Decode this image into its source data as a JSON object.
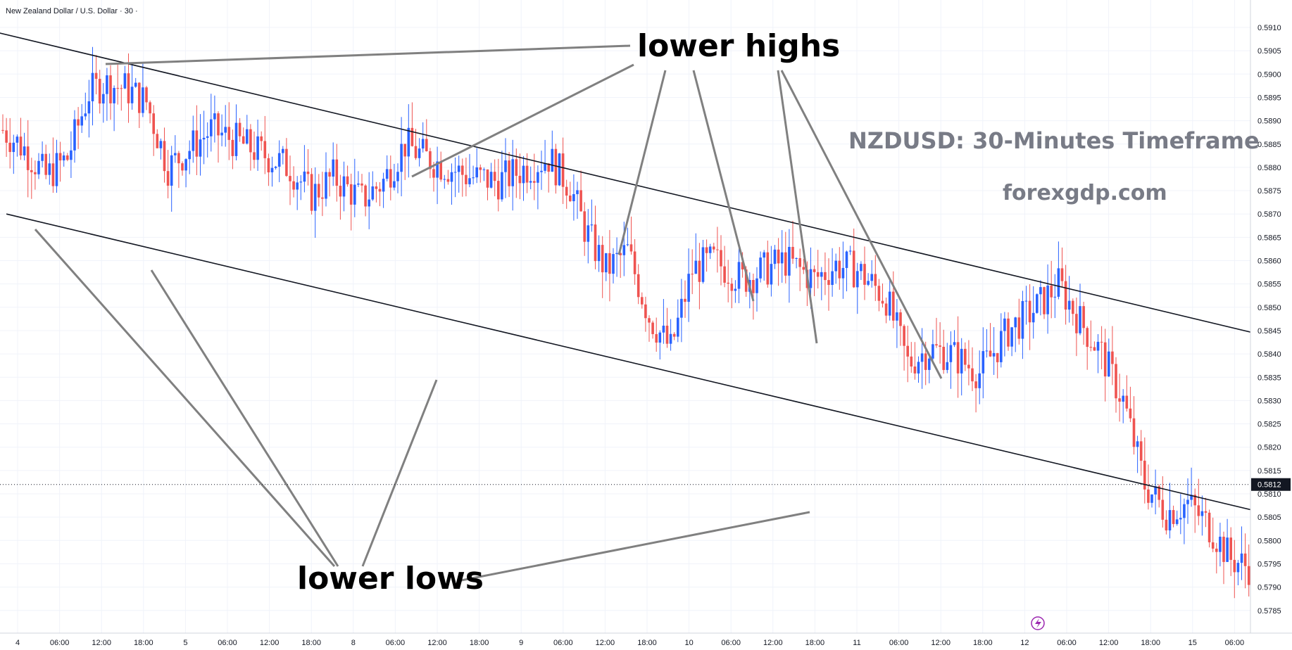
{
  "header": {
    "symbol": "New Zealand Dollar / U.S. Dollar · 30 ·"
  },
  "annotations": {
    "lower_highs": "lower highs",
    "lower_lows": "lower lows",
    "title": "NZDUSD: 30-Minutes Timeframe",
    "site": "forexgdp.com"
  },
  "price_axis": {
    "current_price": "0.5812",
    "labels": [
      "0.5910",
      "0.5905",
      "0.5900",
      "0.5895",
      "0.5890",
      "0.5885",
      "0.5880",
      "0.5875",
      "0.5870",
      "0.5865",
      "0.5860",
      "0.5855",
      "0.5850",
      "0.5845",
      "0.5840",
      "0.5835",
      "0.5830",
      "0.5825",
      "0.5820",
      "0.5815",
      "0.5810",
      "0.5805",
      "0.5800",
      "0.5795",
      "0.5790",
      "0.5785"
    ]
  },
  "time_axis": {
    "labels": [
      "4",
      "06:00",
      "12:00",
      "18:00",
      "5",
      "06:00",
      "12:00",
      "18:00",
      "8",
      "06:00",
      "12:00",
      "18:00",
      "9",
      "06:00",
      "12:00",
      "18:00",
      "10",
      "06:00",
      "12:00",
      "18:00",
      "11",
      "06:00",
      "12:00",
      "18:00",
      "12",
      "06:00",
      "12:00",
      "18:00",
      "15",
      "06:00"
    ]
  },
  "colors": {
    "up": "#2962ff",
    "down": "#ef5350",
    "channel": "#131722",
    "pointer": "#808080",
    "grid": "#f0f3fa"
  },
  "chart_data": {
    "type": "candlestick",
    "title": "NZDUSD: 30-Minutes Timeframe",
    "symbol": "New Zealand Dollar / U.S. Dollar",
    "timeframe": "30",
    "ylim": [
      0.5782,
      0.5915
    ],
    "last_price": 0.5812,
    "x_ticks": [
      "4",
      "06:00",
      "12:00",
      "18:00",
      "5",
      "06:00",
      "12:00",
      "18:00",
      "8",
      "06:00",
      "12:00",
      "18:00",
      "9",
      "06:00",
      "12:00",
      "18:00",
      "10",
      "06:00",
      "12:00",
      "18:00",
      "11",
      "06:00",
      "12:00",
      "18:00",
      "12",
      "06:00",
      "12:00",
      "18:00",
      "15",
      "06:00"
    ],
    "y_ticks": [
      0.591,
      0.5905,
      0.59,
      0.5895,
      0.589,
      0.5885,
      0.588,
      0.5875,
      0.587,
      0.5865,
      0.586,
      0.5855,
      0.585,
      0.5845,
      0.584,
      0.5835,
      0.583,
      0.5825,
      0.582,
      0.5815,
      0.581,
      0.5805,
      0.58,
      0.5795,
      0.579,
      0.5785
    ],
    "bars_count": 300,
    "path_points": [
      [
        0,
        0.5888
      ],
      [
        6,
        0.5884
      ],
      [
        12,
        0.5878
      ],
      [
        18,
        0.5882
      ],
      [
        24,
        0.5896
      ],
      [
        28,
        0.5898
      ],
      [
        34,
        0.5897
      ],
      [
        40,
        0.5894
      ],
      [
        46,
        0.588
      ],
      [
        52,
        0.5884
      ],
      [
        58,
        0.5888
      ],
      [
        64,
        0.5886
      ],
      [
        72,
        0.5883
      ],
      [
        80,
        0.588
      ],
      [
        86,
        0.5874
      ],
      [
        92,
        0.5878
      ],
      [
        100,
        0.5873
      ],
      [
        106,
        0.5877
      ],
      [
        112,
        0.5885
      ],
      [
        118,
        0.5882
      ],
      [
        124,
        0.588
      ],
      [
        130,
        0.5878
      ],
      [
        138,
        0.5877
      ],
      [
        146,
        0.588
      ],
      [
        152,
        0.5882
      ],
      [
        158,
        0.5876
      ],
      [
        162,
        0.5867
      ],
      [
        168,
        0.5858
      ],
      [
        174,
        0.5862
      ],
      [
        180,
        0.5848
      ],
      [
        186,
        0.5841
      ],
      [
        192,
        0.5858
      ],
      [
        198,
        0.586
      ],
      [
        206,
        0.5856
      ],
      [
        212,
        0.5858
      ],
      [
        218,
        0.586
      ],
      [
        226,
        0.5856
      ],
      [
        232,
        0.5859
      ],
      [
        238,
        0.5858
      ],
      [
        246,
        0.5852
      ],
      [
        252,
        0.5838
      ],
      [
        258,
        0.5841
      ],
      [
        264,
        0.584
      ],
      [
        272,
        0.5836
      ],
      [
        280,
        0.5845
      ],
      [
        288,
        0.585
      ],
      [
        294,
        0.5855
      ],
      [
        300,
        0.5847
      ],
      [
        306,
        0.584
      ],
      [
        312,
        0.583
      ],
      [
        318,
        0.5812
      ],
      [
        324,
        0.5806
      ],
      [
        330,
        0.5808
      ],
      [
        336,
        0.5803
      ],
      [
        342,
        0.5796
      ],
      [
        348,
        0.5794
      ],
      [
        354,
        0.5796
      ],
      [
        358,
        0.5804
      ],
      [
        362,
        0.5812
      ],
      [
        366,
        0.5816
      ],
      [
        370,
        0.5812
      ],
      [
        374,
        0.5825
      ],
      [
        378,
        0.5828
      ],
      [
        382,
        0.583
      ],
      [
        386,
        0.5826
      ],
      [
        390,
        0.5822
      ],
      [
        394,
        0.5818
      ],
      [
        400,
        0.582
      ],
      [
        404,
        0.5825
      ],
      [
        408,
        0.5816
      ],
      [
        414,
        0.5819
      ],
      [
        420,
        0.5816
      ],
      [
        426,
        0.5814
      ],
      [
        430,
        0.5812
      ]
    ],
    "channel_lines": [
      {
        "name": "upper",
        "from": [
          -2,
          0.5909
        ],
        "to": [
          525,
          0.5812
        ]
      },
      {
        "name": "lower",
        "from": [
          1,
          0.587
        ],
        "to": [
          482,
          0.5782
        ]
      }
    ],
    "annotations": [
      "lower highs",
      "lower lows"
    ]
  }
}
